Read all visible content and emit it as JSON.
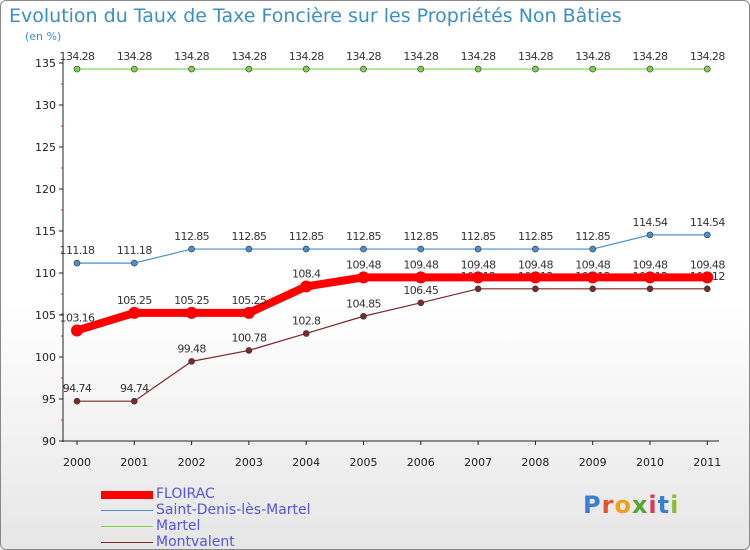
{
  "chart_data": {
    "type": "line",
    "title": "Evolution du Taux de Taxe Foncière sur les Propriétés Non Bâties",
    "subtitle": "(en %)",
    "x": [
      "2000",
      "2001",
      "2002",
      "2003",
      "2004",
      "2005",
      "2006",
      "2007",
      "2008",
      "2009",
      "2010",
      "2011"
    ],
    "ylim": [
      90,
      135
    ],
    "yticks": [
      "90",
      "95",
      "100",
      "105",
      "110",
      "115",
      "120",
      "125",
      "130",
      "135"
    ],
    "grid": false,
    "legend_position": "bottom-left",
    "series": [
      {
        "name": "FLOIRAC",
        "color": "#ff0000",
        "emphasis": true,
        "values": [
          103.16,
          105.25,
          105.25,
          105.25,
          108.4,
          109.48,
          109.48,
          109.48,
          109.48,
          109.48,
          109.48,
          109.48
        ],
        "labels": [
          "103.16",
          "105.25",
          "105.25",
          "105.25",
          "108.4",
          "109.48",
          "109.48",
          "109.48",
          "109.48",
          "109.48",
          "109.48",
          "109.48"
        ]
      },
      {
        "name": "Saint-Denis-lès-Martel",
        "color": "#4a8fcf",
        "values": [
          111.18,
          111.18,
          112.85,
          112.85,
          112.85,
          112.85,
          112.85,
          112.85,
          112.85,
          112.85,
          114.54,
          114.54
        ],
        "labels": [
          "111.18",
          "111.18",
          "112.85",
          "112.85",
          "112.85",
          "112.85",
          "112.85",
          "112.85",
          "112.85",
          "112.85",
          "114.54",
          "114.54"
        ]
      },
      {
        "name": "Martel",
        "color": "#7fd04a",
        "values": [
          134.28,
          134.28,
          134.28,
          134.28,
          134.28,
          134.28,
          134.28,
          134.28,
          134.28,
          134.28,
          134.28,
          134.28
        ],
        "labels": [
          "134.28",
          "134.28",
          "134.28",
          "134.28",
          "134.28",
          "134.28",
          "134.28",
          "134.28",
          "134.28",
          "134.28",
          "134.28",
          "134.28"
        ]
      },
      {
        "name": "Montvalent",
        "color": "#7a2a2a",
        "values": [
          94.74,
          94.74,
          99.48,
          100.78,
          102.8,
          104.85,
          106.45,
          108.12,
          108.12,
          108.12,
          108.12,
          108.12
        ],
        "labels": [
          "94.74",
          "94.74",
          "99.48",
          "100.78",
          "102.8",
          "104.85",
          "106.45",
          "108.12",
          "108.12",
          "108.12",
          "108.12",
          "108.12"
        ]
      }
    ]
  },
  "logo": {
    "text": "Proxiti"
  }
}
